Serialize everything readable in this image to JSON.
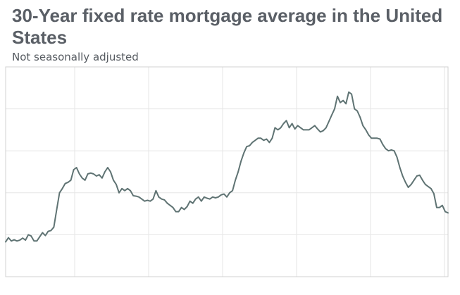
{
  "header": {
    "title": "30-Year fixed rate mortgage average in the United States",
    "subtitle": "Not seasonally adjusted"
  },
  "colors": {
    "line": "#5f7373",
    "grid": "#e6e6e6",
    "frame": "#d0d0d0",
    "title": "#5a5f66"
  },
  "chart_data": {
    "type": "line",
    "title": "30-Year fixed rate mortgage average in the United States",
    "subtitle": "Not seasonally adjusted",
    "xlabel": "",
    "ylabel": "",
    "grid": true,
    "x_ticks": [],
    "y_ticks": [],
    "ylim": [
      0,
      5
    ],
    "series": [
      {
        "values": [
          0.83,
          0.93,
          0.85,
          0.88,
          0.85,
          0.87,
          0.92,
          0.87,
          1.0,
          0.97,
          0.85,
          0.85,
          0.95,
          1.05,
          0.98,
          1.08,
          1.1,
          1.18,
          1.6,
          2.0,
          2.1,
          2.22,
          2.25,
          2.3,
          2.55,
          2.6,
          2.45,
          2.35,
          2.3,
          2.45,
          2.47,
          2.45,
          2.4,
          2.43,
          2.35,
          2.5,
          2.6,
          2.5,
          2.3,
          2.2,
          2.0,
          2.1,
          2.05,
          2.1,
          2.05,
          1.93,
          1.92,
          1.9,
          1.85,
          1.8,
          1.82,
          1.8,
          1.85,
          2.05,
          1.9,
          1.85,
          1.83,
          1.75,
          1.7,
          1.65,
          1.55,
          1.55,
          1.65,
          1.6,
          1.67,
          1.8,
          1.75,
          1.85,
          1.9,
          1.8,
          1.9,
          1.87,
          1.85,
          1.9,
          1.88,
          1.9,
          1.95,
          1.97,
          1.9,
          2.0,
          2.05,
          2.3,
          2.5,
          2.75,
          2.95,
          3.1,
          3.12,
          3.2,
          3.25,
          3.3,
          3.3,
          3.25,
          3.28,
          3.2,
          3.3,
          3.55,
          3.5,
          3.55,
          3.65,
          3.72,
          3.55,
          3.65,
          3.52,
          3.6,
          3.55,
          3.5,
          3.5,
          3.5,
          3.55,
          3.6,
          3.52,
          3.45,
          3.48,
          3.55,
          3.7,
          3.85,
          4.0,
          4.3,
          4.15,
          4.2,
          4.12,
          4.4,
          4.35,
          4.0,
          3.95,
          3.8,
          3.6,
          3.5,
          3.38,
          3.3,
          3.3,
          3.3,
          3.28,
          3.15,
          3.05,
          3.0,
          3.02,
          3.0,
          2.85,
          2.6,
          2.4,
          2.25,
          2.13,
          2.2,
          2.3,
          2.4,
          2.42,
          2.3,
          2.2,
          2.15,
          2.1,
          1.98,
          1.65,
          1.65,
          1.7,
          1.55,
          1.52
        ]
      }
    ]
  }
}
